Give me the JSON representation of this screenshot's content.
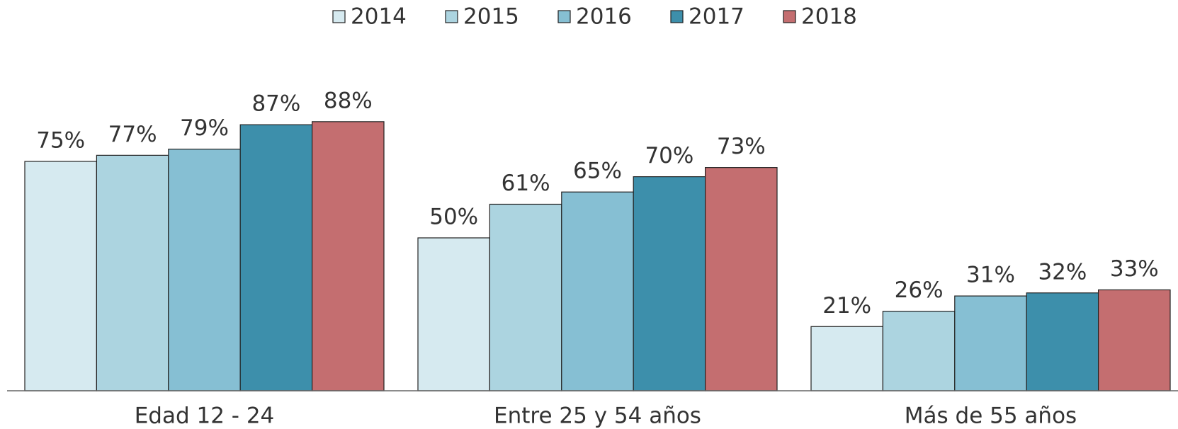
{
  "chart_data": {
    "type": "bar",
    "categories": [
      "Edad 12 - 24",
      "Entre 25 y 54 años",
      "Más de 55 años"
    ],
    "series": [
      {
        "name": "2014",
        "color": "#d6eaf0",
        "values": [
          75,
          50,
          21
        ],
        "value_labels": [
          "75%",
          "50%",
          "21%"
        ]
      },
      {
        "name": "2015",
        "color": "#acd4e0",
        "values": [
          77,
          61,
          26
        ],
        "value_labels": [
          "77%",
          "61%",
          "26%"
        ]
      },
      {
        "name": "2016",
        "color": "#86bfd3",
        "values": [
          79,
          65,
          31
        ],
        "value_labels": [
          "79%",
          "65%",
          "31%"
        ]
      },
      {
        "name": "2017",
        "color": "#3d8fab",
        "values": [
          87,
          70,
          32
        ],
        "value_labels": [
          "87%",
          "70%",
          "32%"
        ]
      },
      {
        "name": "2018",
        "color": "#c46e70",
        "values": [
          88,
          73,
          33
        ],
        "value_labels": [
          "88%",
          "73%",
          "33%"
        ]
      }
    ],
    "ylim": [
      0,
      100
    ],
    "legend": "top"
  }
}
